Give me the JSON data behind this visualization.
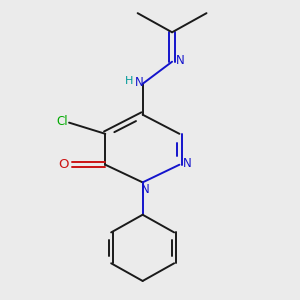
{
  "background_color": "#ebebeb",
  "bond_color": "#1a1a1a",
  "n_color": "#1414cc",
  "o_color": "#cc1414",
  "cl_color": "#00aa00",
  "h_color": "#009999",
  "figsize": [
    3.0,
    3.0
  ],
  "dpi": 100,
  "lw": 1.4,
  "fs": 8.5,
  "xlim": [
    0.12,
    0.88
  ],
  "ylim": [
    0.04,
    1.05
  ]
}
